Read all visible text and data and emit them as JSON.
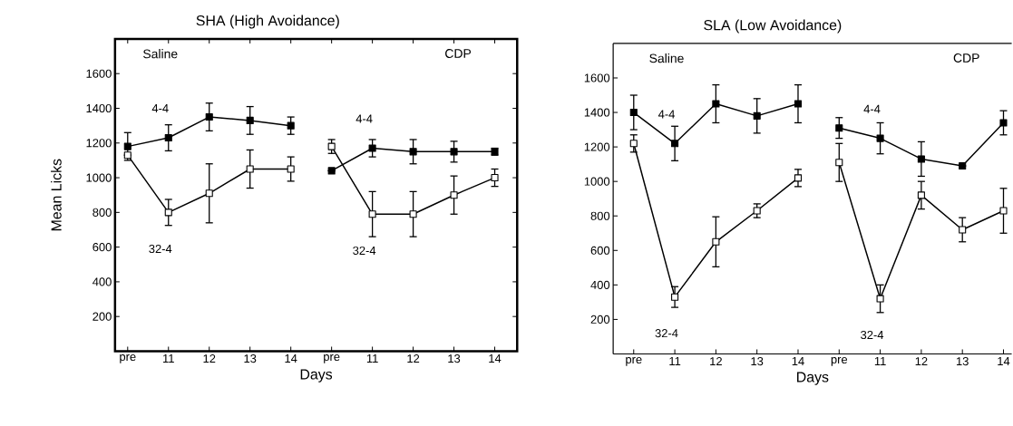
{
  "chart_data": [
    {
      "type": "line",
      "title": "SHA (High Avoidance)",
      "xlabel": "Days",
      "ylabel": "Mean Licks",
      "categories": [
        "pre",
        "11",
        "12",
        "13",
        "14",
        "pre",
        "11",
        "12",
        "13",
        "14"
      ],
      "ylim": [
        0,
        1800
      ],
      "yticks": [
        200,
        400,
        600,
        800,
        1000,
        1200,
        1400,
        1600
      ],
      "annotations": [
        "Saline",
        "CDP"
      ],
      "series": [
        {
          "name": "4-4",
          "color": "#000000",
          "marker": "square",
          "values": [
            1180,
            1230,
            1350,
            1330,
            1300,
            null,
            null,
            null,
            null,
            null
          ],
          "errors": [
            80,
            75,
            80,
            80,
            50,
            null,
            null,
            null,
            null,
            null
          ]
        },
        {
          "name": "32-4",
          "color": "#000000",
          "marker": "square-open",
          "values": [
            1130,
            800,
            910,
            1050,
            1050,
            null,
            null,
            null,
            null,
            null
          ],
          "errors": [
            null,
            75,
            170,
            110,
            70,
            null,
            null,
            null,
            null,
            null
          ]
        },
        {
          "name": "4-4",
          "color": "#000000",
          "marker": "square",
          "values": [
            null,
            null,
            null,
            null,
            null,
            1040,
            1170,
            1150,
            1150,
            1150
          ],
          "errors": [
            null,
            null,
            null,
            null,
            null,
            null,
            50,
            70,
            60,
            20
          ]
        },
        {
          "name": "32-4",
          "color": "#000000",
          "marker": "square-open",
          "values": [
            null,
            null,
            null,
            null,
            null,
            1180,
            790,
            790,
            900,
            1000
          ],
          "errors": [
            null,
            null,
            null,
            null,
            null,
            40,
            130,
            130,
            110,
            50
          ]
        }
      ]
    },
    {
      "type": "line",
      "title": "SLA (Low Avoidance)",
      "xlabel": "Days",
      "categories": [
        "pre",
        "11",
        "12",
        "13",
        "14",
        "pre",
        "11",
        "12",
        "13",
        "14"
      ],
      "ylim": [
        0,
        1800
      ],
      "yticks": [
        200,
        400,
        600,
        800,
        1000,
        1200,
        1400,
        1600
      ],
      "annotations": [
        "Saline",
        "CDP"
      ],
      "series": [
        {
          "name": "4-4",
          "color": "#000000",
          "marker": "square",
          "values": [
            1400,
            1220,
            1450,
            1380,
            1450,
            null,
            null,
            null,
            null,
            null
          ],
          "errors": [
            100,
            100,
            110,
            100,
            110,
            null,
            null,
            null,
            null,
            null
          ]
        },
        {
          "name": "32-4",
          "color": "#000000",
          "marker": "square-open",
          "values": [
            1220,
            330,
            650,
            830,
            1020,
            null,
            null,
            null,
            null,
            null
          ],
          "errors": [
            50,
            60,
            145,
            40,
            50,
            null,
            null,
            null,
            null,
            null
          ]
        },
        {
          "name": "4-4",
          "color": "#000000",
          "marker": "square",
          "values": [
            null,
            null,
            null,
            null,
            null,
            1310,
            1250,
            1130,
            1090,
            1340
          ],
          "errors": [
            null,
            null,
            null,
            null,
            null,
            60,
            90,
            100,
            null,
            70
          ]
        },
        {
          "name": "32-4",
          "color": "#000000",
          "marker": "square-open",
          "values": [
            null,
            null,
            null,
            null,
            null,
            1110,
            320,
            920,
            720,
            830
          ],
          "errors": [
            null,
            null,
            null,
            null,
            null,
            110,
            80,
            80,
            70,
            130
          ]
        }
      ]
    }
  ]
}
